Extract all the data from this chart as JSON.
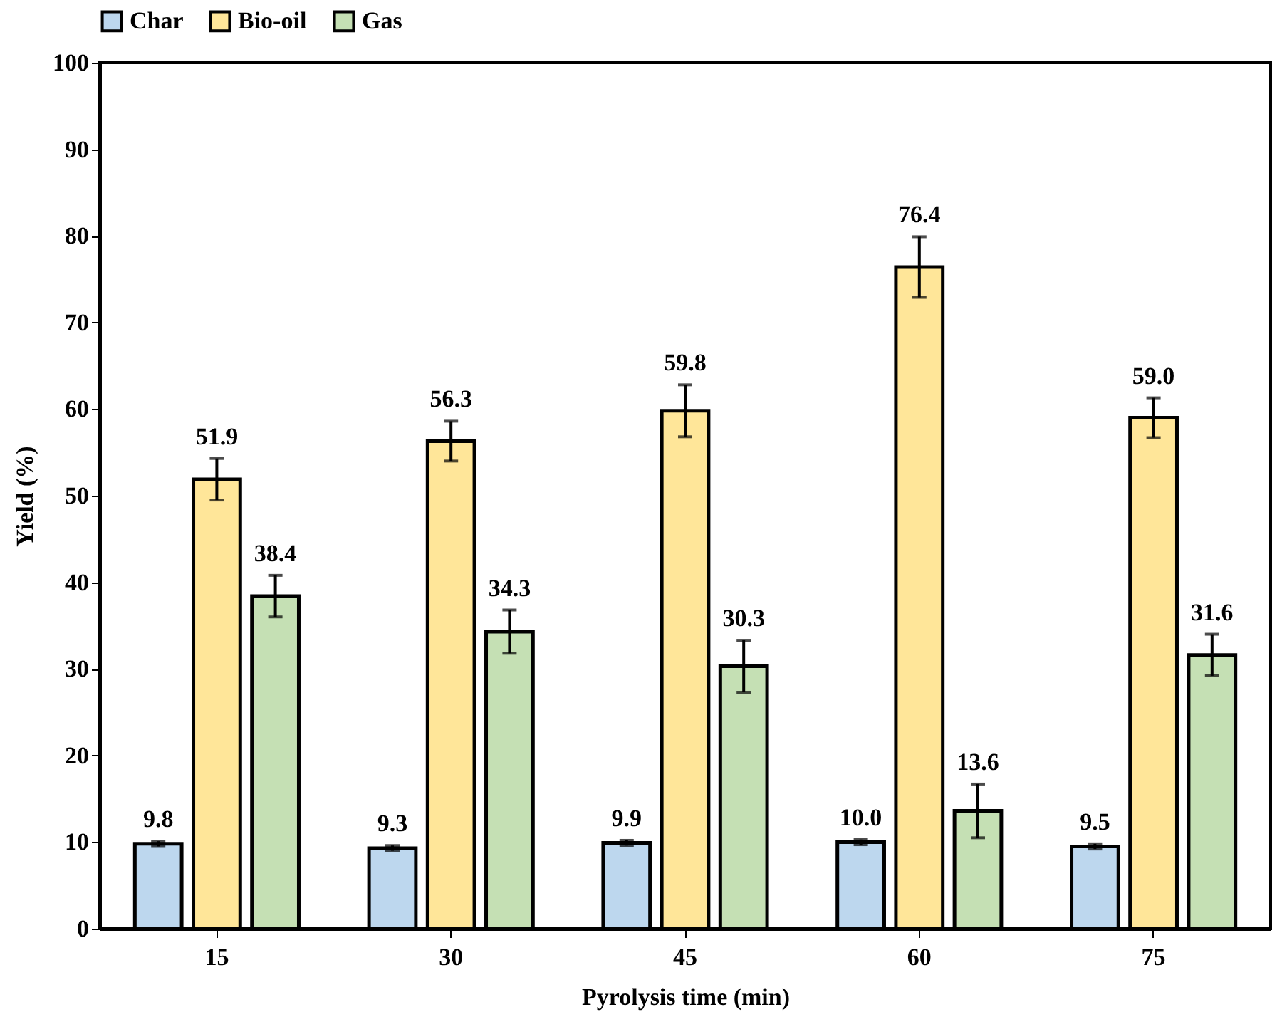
{
  "chart_data": {
    "type": "bar",
    "xlabel": "Pyrolysis time (min)",
    "ylabel": "Yield (%)",
    "categories": [
      "15",
      "30",
      "45",
      "60",
      "75"
    ],
    "series": [
      {
        "name": "Char",
        "color": "#bdd7ee",
        "values": [
          9.8,
          9.3,
          9.9,
          10.0,
          9.5
        ],
        "value_labels": [
          "9.8",
          "9.3",
          "9.9",
          "10.0",
          "9.5"
        ],
        "errors": [
          0.3,
          0.3,
          0.3,
          0.3,
          0.3
        ]
      },
      {
        "name": "Bio-oil",
        "color": "#ffe699",
        "values": [
          51.9,
          56.3,
          59.8,
          76.4,
          59.0
        ],
        "value_labels": [
          "51.9",
          "56.3",
          "59.8",
          "76.4",
          "59.0"
        ],
        "errors": [
          2.4,
          2.3,
          3.0,
          3.5,
          2.3
        ]
      },
      {
        "name": "Gas",
        "color": "#c5e0b4",
        "values": [
          38.4,
          34.3,
          30.3,
          13.6,
          31.6
        ],
        "value_labels": [
          "38.4",
          "34.3",
          "30.3",
          "13.6",
          "31.6"
        ],
        "errors": [
          2.4,
          2.5,
          3.0,
          3.1,
          2.4
        ]
      }
    ],
    "ylim": [
      0,
      100
    ],
    "yticks": [
      0,
      10,
      20,
      30,
      40,
      50,
      60,
      70,
      80,
      90,
      100
    ],
    "legend": "top",
    "grid": false
  }
}
